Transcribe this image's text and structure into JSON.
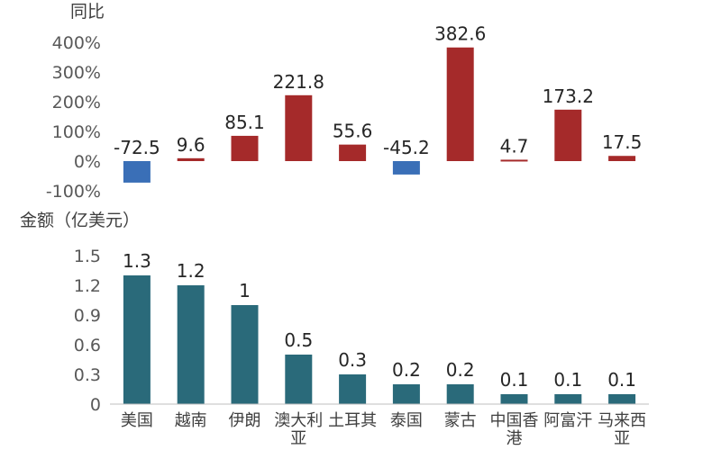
{
  "chart_data": [
    {
      "type": "bar",
      "ylabel": "同比",
      "y_ticks": [
        "400%",
        "300%",
        "200%",
        "100%",
        "0%",
        "-100%"
      ],
      "ylim": [
        -100,
        400
      ],
      "categories": [
        "美国",
        "越南",
        "伊朗",
        "澳大利亚",
        "土耳其",
        "泰国",
        "蒙古",
        "中国香港",
        "阿富汗",
        "马来西亚"
      ],
      "values": [
        -72.5,
        9.6,
        85.1,
        221.8,
        55.6,
        -45.2,
        382.6,
        4.7,
        173.2,
        17.5
      ],
      "value_labels": [
        "-72.5",
        "9.6",
        "85.1",
        "221.8",
        "55.6",
        "-45.2",
        "382.6",
        "4.7",
        "173.2",
        "17.5"
      ],
      "colors": {
        "positive": "#A52A2A",
        "negative": "#3A6FB7"
      }
    },
    {
      "type": "bar",
      "ylabel": "金额（亿美元）",
      "y_ticks": [
        "1.5",
        "1.2",
        "0.9",
        "0.6",
        "0.3",
        "0"
      ],
      "ylim": [
        0,
        1.5
      ],
      "categories": [
        "美国",
        "越南",
        "伊朗",
        "澳大利亚",
        "土耳其",
        "泰国",
        "蒙古",
        "中国香港",
        "阿富汗",
        "马来西亚"
      ],
      "category_lines": [
        [
          "美国"
        ],
        [
          "越南"
        ],
        [
          "伊朗"
        ],
        [
          "澳大利",
          "亚"
        ],
        [
          "土耳其"
        ],
        [
          "泰国"
        ],
        [
          "蒙古"
        ],
        [
          "中国香",
          "港"
        ],
        [
          "阿富汗"
        ],
        [
          "马来西",
          "亚"
        ]
      ],
      "values": [
        1.3,
        1.2,
        1.0,
        0.5,
        0.3,
        0.2,
        0.2,
        0.1,
        0.1,
        0.1
      ],
      "value_labels": [
        "1.3",
        "1.2",
        "1",
        "0.5",
        "0.3",
        "0.2",
        "0.2",
        "0.1",
        "0.1",
        "0.1"
      ],
      "color": "#2A6A7A"
    }
  ]
}
